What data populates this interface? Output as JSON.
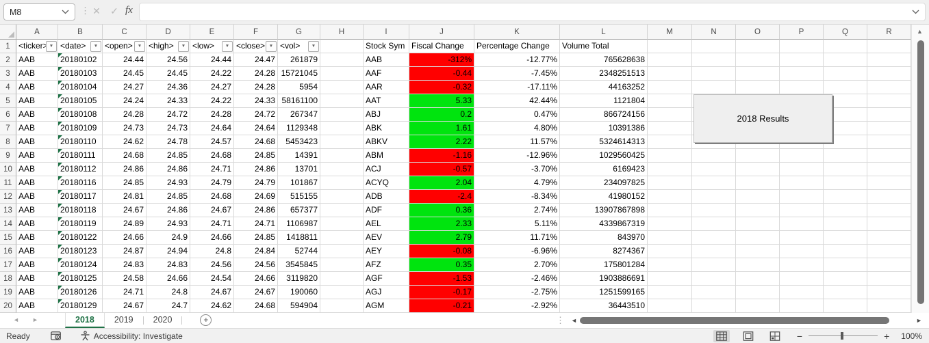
{
  "colors": {
    "negative_fill": "#ff0000",
    "positive_fill": "#00e40e",
    "tab_active_green": "#1e7145",
    "error_flag_green": "#1e7145"
  },
  "formula_bar": {
    "name_box_value": "M8",
    "formula_value": "",
    "fx_label": "fx"
  },
  "icons": {
    "filter_dropdown": "▼",
    "grip": "⋮",
    "cancel": "✕",
    "check": "✓",
    "left_small": "◄",
    "right_small": "►",
    "up_small": "▲",
    "plus": "+",
    "minus": "−"
  },
  "columns": [
    "A",
    "B",
    "C",
    "D",
    "E",
    "F",
    "G",
    "H",
    "I",
    "J",
    "K",
    "L",
    "M",
    "N",
    "O",
    "P",
    "Q",
    "R"
  ],
  "header_row": {
    "filter_cells": [
      "<ticker>",
      "<date>",
      "<open>",
      "<high>",
      "<low>",
      "<close>",
      "<vol>"
    ],
    "stock_symbol": "Stock Sym",
    "fiscal_change": "Fiscal Change",
    "percentage_change": "Percentage Change",
    "volume_total": "Volume Total"
  },
  "rows": [
    {
      "n": "2",
      "ticker": "AAB",
      "date": "20180102",
      "open": "24.44",
      "high": "24.56",
      "low": "24.44",
      "close": "24.47",
      "vol": "261879",
      "sym": "AAB",
      "fiscal": "-312%",
      "trend": "down",
      "pct": "-12.77%",
      "vol_total": "765628638"
    },
    {
      "n": "3",
      "ticker": "AAB",
      "date": "20180103",
      "open": "24.45",
      "high": "24.45",
      "low": "24.22",
      "close": "24.28",
      "vol": "15721045",
      "sym": "AAF",
      "fiscal": "-0.44",
      "trend": "down",
      "pct": "-7.45%",
      "vol_total": "2348251513"
    },
    {
      "n": "4",
      "ticker": "AAB",
      "date": "20180104",
      "open": "24.27",
      "high": "24.36",
      "low": "24.27",
      "close": "24.28",
      "vol": "5954",
      "sym": "AAR",
      "fiscal": "-0.32",
      "trend": "down",
      "pct": "-17.11%",
      "vol_total": "44163252"
    },
    {
      "n": "5",
      "ticker": "AAB",
      "date": "20180105",
      "open": "24.24",
      "high": "24.33",
      "low": "24.22",
      "close": "24.33",
      "vol": "58161100",
      "sym": "AAT",
      "fiscal": "5.33",
      "trend": "up",
      "pct": "42.44%",
      "vol_total": "1121804"
    },
    {
      "n": "6",
      "ticker": "AAB",
      "date": "20180108",
      "open": "24.28",
      "high": "24.72",
      "low": "24.28",
      "close": "24.72",
      "vol": "267347",
      "sym": "ABJ",
      "fiscal": "0.2",
      "trend": "up",
      "pct": "0.47%",
      "vol_total": "866724156"
    },
    {
      "n": "7",
      "ticker": "AAB",
      "date": "20180109",
      "open": "24.73",
      "high": "24.73",
      "low": "24.64",
      "close": "24.64",
      "vol": "1129348",
      "sym": "ABK",
      "fiscal": "1.61",
      "trend": "up",
      "pct": "4.80%",
      "vol_total": "10391386"
    },
    {
      "n": "8",
      "ticker": "AAB",
      "date": "20180110",
      "open": "24.62",
      "high": "24.78",
      "low": "24.57",
      "close": "24.68",
      "vol": "5453423",
      "sym": "ABKV",
      "fiscal": "2.22",
      "trend": "up",
      "pct": "11.57%",
      "vol_total": "5324614313"
    },
    {
      "n": "9",
      "ticker": "AAB",
      "date": "20180111",
      "open": "24.68",
      "high": "24.85",
      "low": "24.68",
      "close": "24.85",
      "vol": "14391",
      "sym": "ABM",
      "fiscal": "-1.16",
      "trend": "down",
      "pct": "-12.96%",
      "vol_total": "1029560425"
    },
    {
      "n": "10",
      "ticker": "AAB",
      "date": "20180112",
      "open": "24.86",
      "high": "24.86",
      "low": "24.71",
      "close": "24.86",
      "vol": "13701",
      "sym": "ACJ",
      "fiscal": "-0.57",
      "trend": "down",
      "pct": "-3.70%",
      "vol_total": "6169423"
    },
    {
      "n": "11",
      "ticker": "AAB",
      "date": "20180116",
      "open": "24.85",
      "high": "24.93",
      "low": "24.79",
      "close": "24.79",
      "vol": "101867",
      "sym": "ACYQ",
      "fiscal": "2.04",
      "trend": "up",
      "pct": "4.79%",
      "vol_total": "234097825"
    },
    {
      "n": "12",
      "ticker": "AAB",
      "date": "20180117",
      "open": "24.81",
      "high": "24.85",
      "low": "24.68",
      "close": "24.69",
      "vol": "515155",
      "sym": "ADB",
      "fiscal": "-2.4",
      "trend": "down",
      "pct": "-8.34%",
      "vol_total": "41980152"
    },
    {
      "n": "13",
      "ticker": "AAB",
      "date": "20180118",
      "open": "24.67",
      "high": "24.86",
      "low": "24.67",
      "close": "24.86",
      "vol": "657377",
      "sym": "ADF",
      "fiscal": "0.36",
      "trend": "up",
      "pct": "2.74%",
      "vol_total": "13907867898"
    },
    {
      "n": "14",
      "ticker": "AAB",
      "date": "20180119",
      "open": "24.89",
      "high": "24.93",
      "low": "24.71",
      "close": "24.71",
      "vol": "1106987",
      "sym": "AEL",
      "fiscal": "2.33",
      "trend": "up",
      "pct": "5.11%",
      "vol_total": "4339867319"
    },
    {
      "n": "15",
      "ticker": "AAB",
      "date": "20180122",
      "open": "24.66",
      "high": "24.9",
      "low": "24.66",
      "close": "24.85",
      "vol": "1418811",
      "sym": "AEV",
      "fiscal": "2.79",
      "trend": "up",
      "pct": "11.71%",
      "vol_total": "843970"
    },
    {
      "n": "16",
      "ticker": "AAB",
      "date": "20180123",
      "open": "24.87",
      "high": "24.94",
      "low": "24.8",
      "close": "24.84",
      "vol": "52744",
      "sym": "AEY",
      "fiscal": "-0.08",
      "trend": "down",
      "pct": "-6.96%",
      "vol_total": "8274367"
    },
    {
      "n": "17",
      "ticker": "AAB",
      "date": "20180124",
      "open": "24.83",
      "high": "24.83",
      "low": "24.56",
      "close": "24.56",
      "vol": "3545845",
      "sym": "AFZ",
      "fiscal": "0.35",
      "trend": "up",
      "pct": "2.70%",
      "vol_total": "175801284"
    },
    {
      "n": "18",
      "ticker": "AAB",
      "date": "20180125",
      "open": "24.58",
      "high": "24.66",
      "low": "24.54",
      "close": "24.66",
      "vol": "3119820",
      "sym": "AGF",
      "fiscal": "-1.53",
      "trend": "down",
      "pct": "-2.46%",
      "vol_total": "1903886691"
    },
    {
      "n": "19",
      "ticker": "AAB",
      "date": "20180126",
      "open": "24.71",
      "high": "24.8",
      "low": "24.67",
      "close": "24.67",
      "vol": "190060",
      "sym": "AGJ",
      "fiscal": "-0.17",
      "trend": "down",
      "pct": "-2.75%",
      "vol_total": "1251599165"
    },
    {
      "n": "20",
      "ticker": "AAB",
      "date": "20180129",
      "open": "24.67",
      "high": "24.7",
      "low": "24.62",
      "close": "24.68",
      "vol": "594904",
      "sym": "AGM",
      "fiscal": "-0.21",
      "trend": "down",
      "pct": "-2.92%",
      "vol_total": "36443510"
    }
  ],
  "results_button": {
    "label": "2018 Results"
  },
  "sheet_tabs": {
    "tabs": [
      {
        "label": "2018",
        "active": true
      },
      {
        "label": "2019",
        "active": false
      },
      {
        "label": "2020",
        "active": false
      }
    ]
  },
  "status_bar": {
    "mode": "Ready",
    "accessibility": "Accessibility: Investigate",
    "zoom_level": "100%"
  }
}
